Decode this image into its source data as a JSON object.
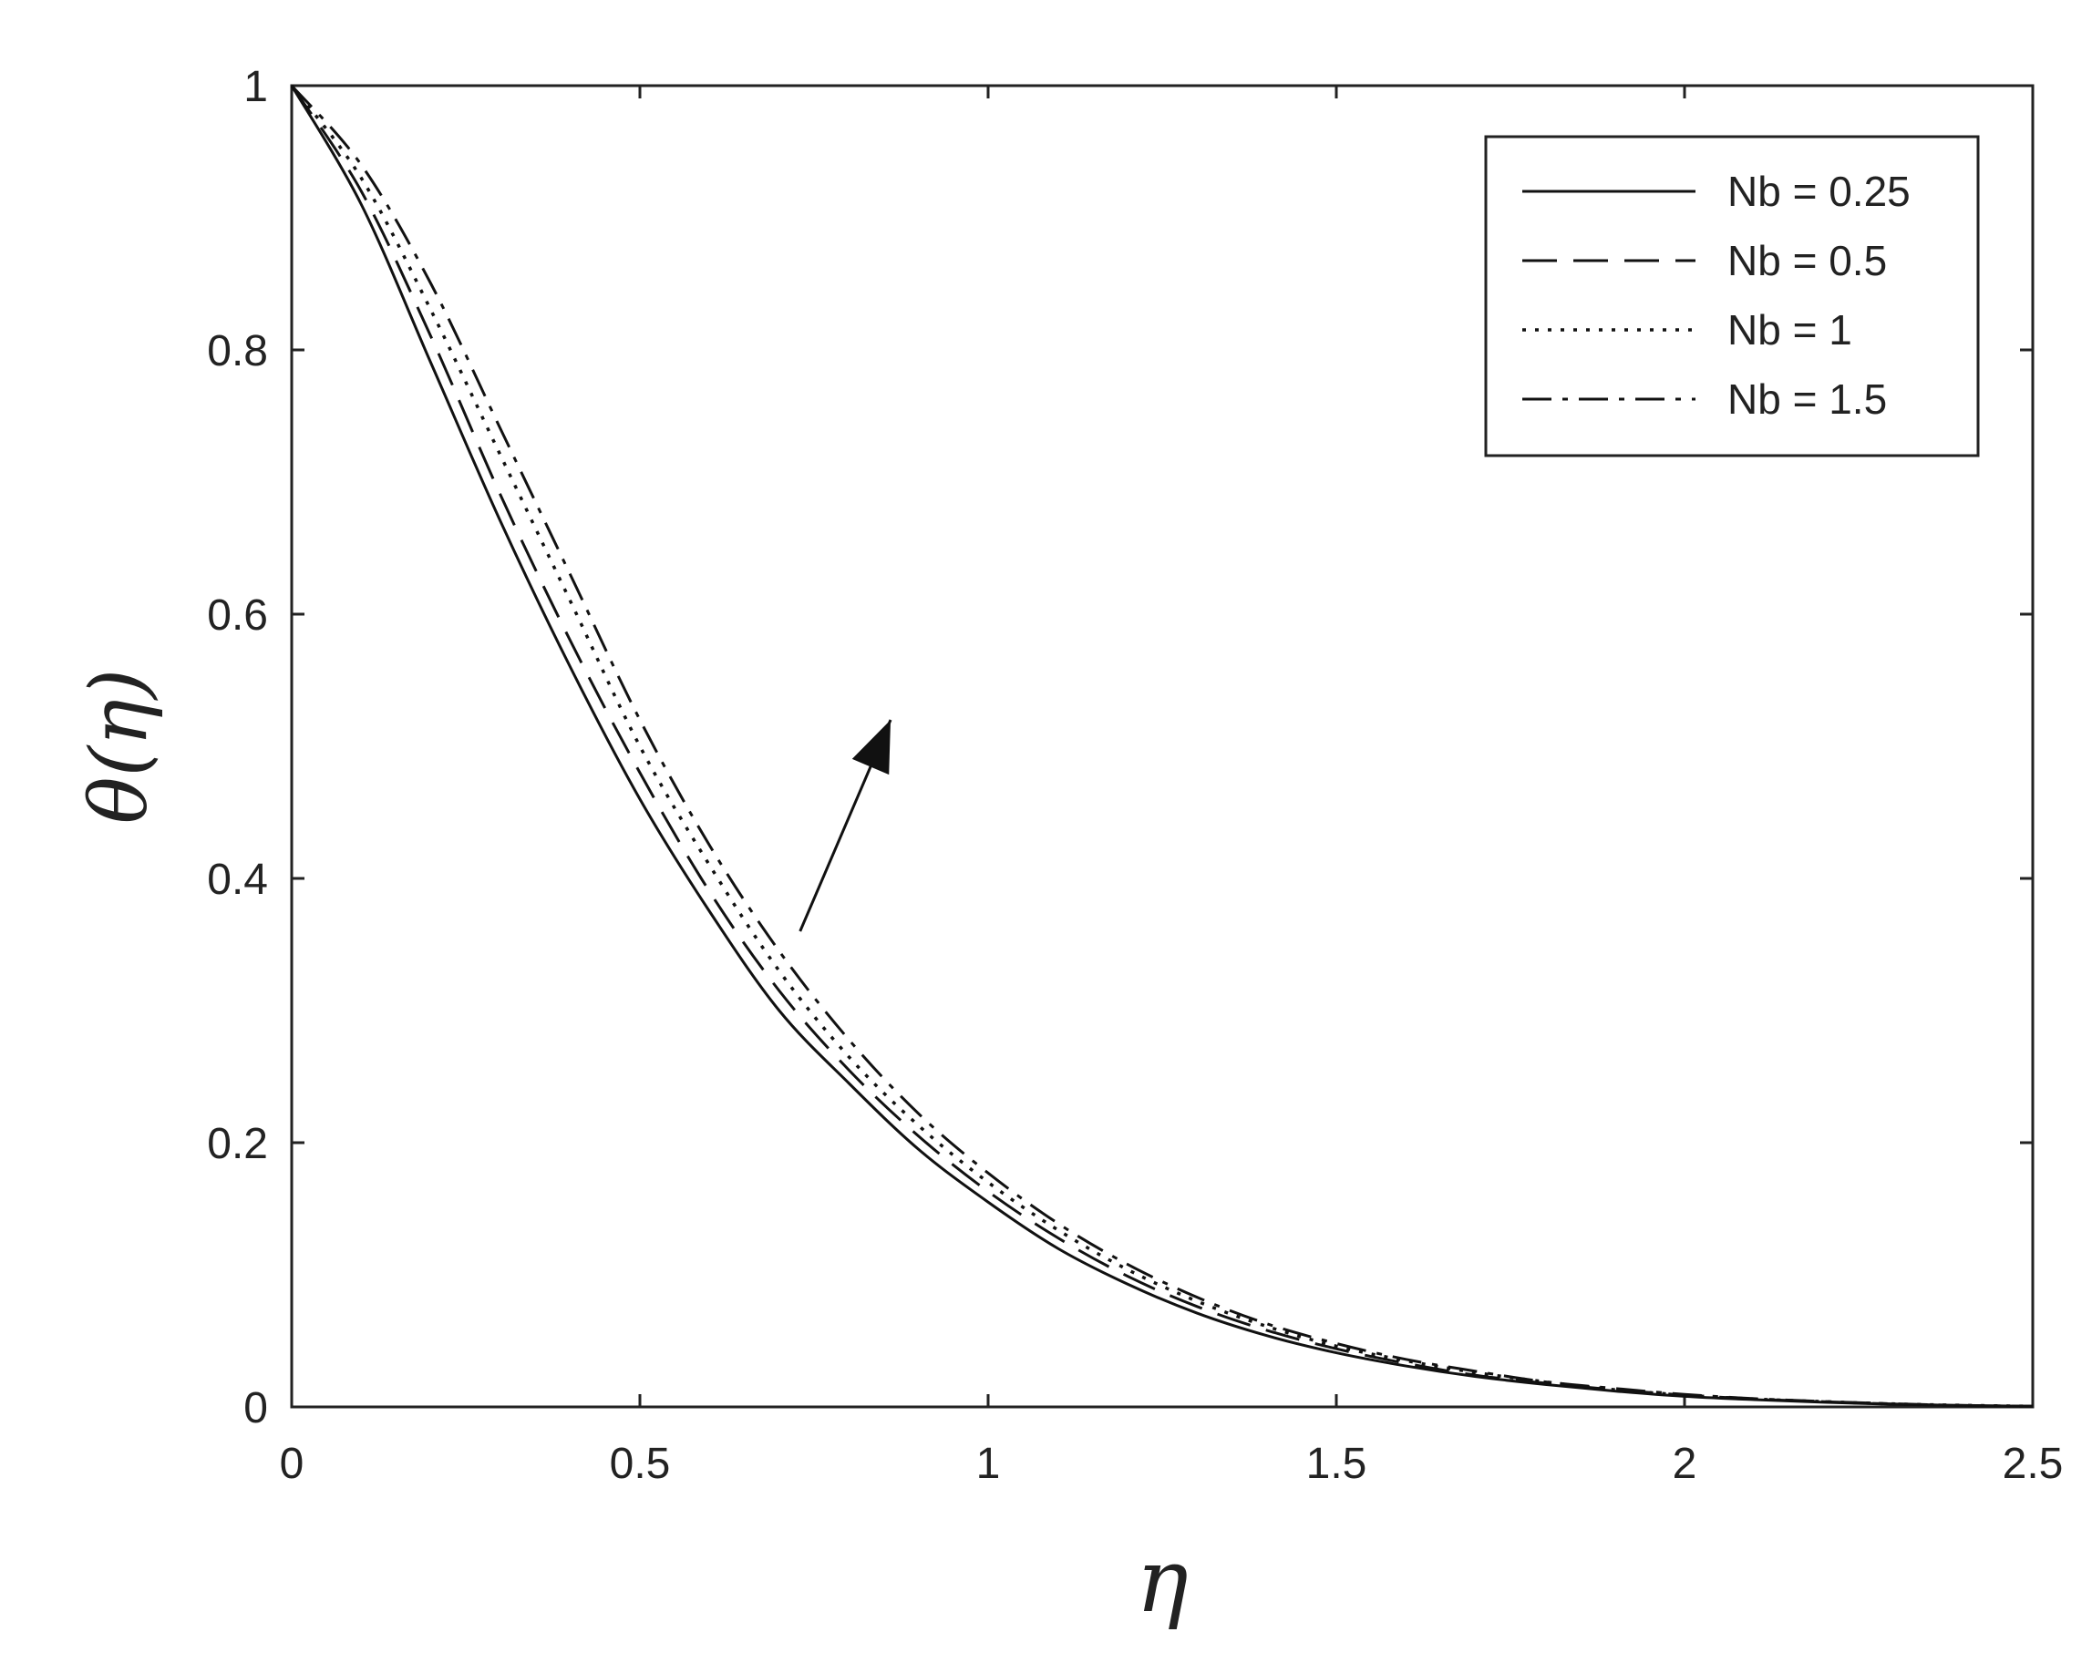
{
  "chart_data": {
    "type": "line",
    "xlabel": "η",
    "ylabel": "θ(η)",
    "xlim": [
      0,
      2.5
    ],
    "ylim": [
      0,
      1
    ],
    "xticks": [
      0,
      0.5,
      1,
      1.5,
      2,
      2.5
    ],
    "yticks": [
      0,
      0.2,
      0.4,
      0.6,
      0.8,
      1
    ],
    "xtick_labels": [
      "0",
      "0.5",
      "1",
      "1.5",
      "2",
      "2.5"
    ],
    "ytick_labels": [
      "0",
      "0.2",
      "0.4",
      "0.6",
      "0.8",
      "1"
    ],
    "grid": false,
    "legend_position": "top-right",
    "annotation": {
      "type": "arrow",
      "direction": "increasing Nb",
      "from": [
        0.73,
        0.36
      ],
      "to": [
        0.86,
        0.52
      ]
    },
    "x": [
      0,
      0.1,
      0.2,
      0.3,
      0.4,
      0.5,
      0.6,
      0.7,
      0.8,
      0.9,
      1.0,
      1.1,
      1.2,
      1.3,
      1.4,
      1.5,
      1.6,
      1.7,
      1.8,
      1.9,
      2.0,
      2.1,
      2.2,
      2.3,
      2.4,
      2.5
    ],
    "series": [
      {
        "name": "Nb = 0.25",
        "style": "solid",
        "values": [
          1.0,
          0.91,
          0.79,
          0.67,
          0.56,
          0.46,
          0.375,
          0.3,
          0.245,
          0.195,
          0.155,
          0.12,
          0.093,
          0.071,
          0.054,
          0.041,
          0.031,
          0.023,
          0.017,
          0.012,
          0.008,
          0.0055,
          0.0035,
          0.002,
          0.001,
          0.0005
        ]
      },
      {
        "name": "Nb = 0.5",
        "style": "dashed",
        "values": [
          1.0,
          0.92,
          0.81,
          0.69,
          0.58,
          0.48,
          0.39,
          0.315,
          0.255,
          0.205,
          0.163,
          0.128,
          0.099,
          0.076,
          0.058,
          0.044,
          0.033,
          0.024,
          0.018,
          0.013,
          0.009,
          0.006,
          0.004,
          0.0022,
          0.0011,
          0.0005
        ]
      },
      {
        "name": "Nb = 1",
        "style": "dotted",
        "values": [
          1.0,
          0.93,
          0.83,
          0.72,
          0.61,
          0.5,
          0.41,
          0.33,
          0.265,
          0.213,
          0.17,
          0.134,
          0.104,
          0.08,
          0.061,
          0.046,
          0.035,
          0.026,
          0.019,
          0.013,
          0.009,
          0.006,
          0.004,
          0.0023,
          0.0012,
          0.0005
        ]
      },
      {
        "name": "Nb = 1.5",
        "style": "dashdot",
        "values": [
          1.0,
          0.94,
          0.85,
          0.74,
          0.63,
          0.52,
          0.425,
          0.345,
          0.278,
          0.222,
          0.177,
          0.139,
          0.108,
          0.083,
          0.063,
          0.048,
          0.036,
          0.027,
          0.019,
          0.014,
          0.0095,
          0.0063,
          0.0041,
          0.0024,
          0.0012,
          0.0005
        ]
      }
    ]
  }
}
